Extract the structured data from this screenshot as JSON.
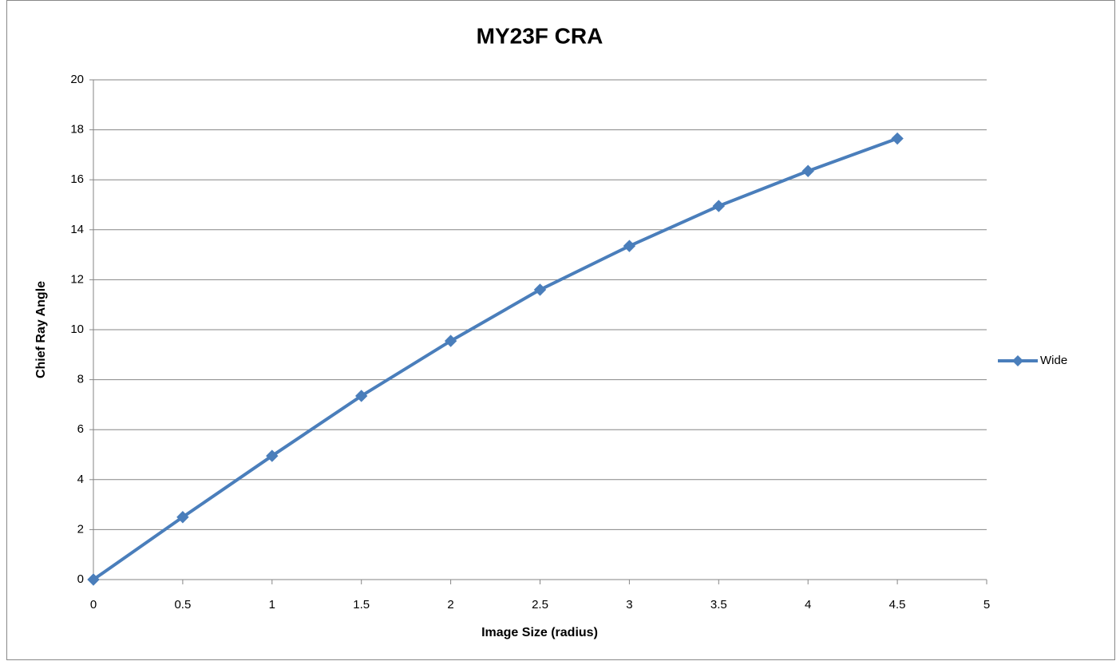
{
  "chart_data": {
    "type": "line",
    "title": "MY23F CRA",
    "x_label": "Image Size (radius)",
    "y_label": "Chief Ray Angle",
    "x": [
      0,
      0.5,
      1,
      1.5,
      2,
      2.5,
      3,
      3.5,
      4,
      4.5
    ],
    "series": [
      {
        "name": "Wide",
        "color": "#4a7ebb",
        "values": [
          0,
          2.5,
          4.95,
          7.35,
          9.55,
          11.6,
          13.35,
          14.95,
          16.35,
          17.65
        ]
      }
    ],
    "xlim": [
      0,
      5
    ],
    "xticks": [
      0,
      0.5,
      1,
      1.5,
      2,
      2.5,
      3,
      3.5,
      4,
      4.5,
      5
    ],
    "ylim": [
      0,
      20
    ],
    "yticks": [
      0,
      2,
      4,
      6,
      8,
      10,
      12,
      14,
      16,
      18,
      20
    ],
    "grid": true,
    "legend": "right"
  }
}
